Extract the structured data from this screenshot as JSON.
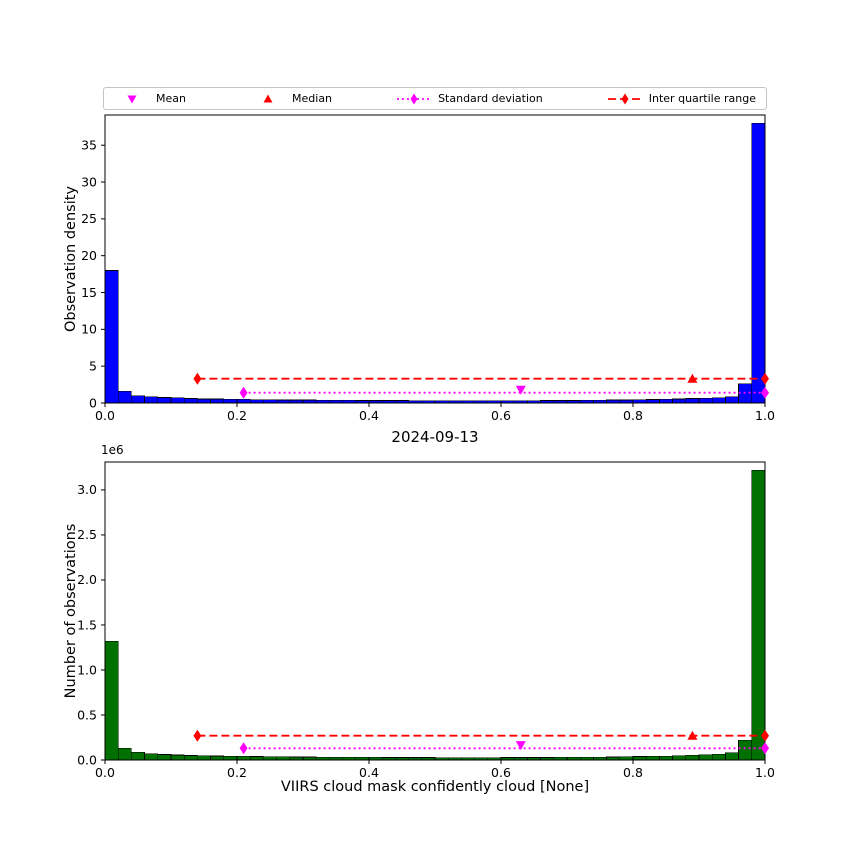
{
  "figure": {
    "background": "#ffffff"
  },
  "title": "2024-09-13",
  "xlabel": "VIIRS cloud mask confidently cloud [None]",
  "legend": {
    "items": [
      {
        "label": "Mean",
        "marker": "triangle-down",
        "color": "#ff00ff",
        "line": "none"
      },
      {
        "label": "Median",
        "marker": "triangle-up",
        "color": "#ff0000",
        "line": "none"
      },
      {
        "label": "Standard deviation",
        "marker": "diamond",
        "color": "#ff00ff",
        "line": "dotted"
      },
      {
        "label": "Inter quartile range",
        "marker": "diamond",
        "color": "#ff0000",
        "line": "dashed"
      }
    ]
  },
  "style": {
    "mean_color": "#ff00ff",
    "median_color": "#ff0000",
    "std_color": "#ff00ff",
    "iqr_color": "#ff0000",
    "axis_color": "#000000"
  },
  "chart_data": [
    {
      "type": "bar",
      "name": "observation-density-histogram",
      "ylabel": "Observation density",
      "bar_color": "#0000ff",
      "bar_edge_color": "#000000",
      "xlim": [
        0,
        1
      ],
      "ylim": [
        0,
        39.1
      ],
      "grid": false,
      "bin_start": 0,
      "bin_width": 0.02,
      "values": [
        18.0,
        1.6,
        1.0,
        0.85,
        0.75,
        0.7,
        0.6,
        0.55,
        0.55,
        0.5,
        0.5,
        0.45,
        0.45,
        0.42,
        0.4,
        0.4,
        0.38,
        0.38,
        0.36,
        0.35,
        0.35,
        0.34,
        0.33,
        0.32,
        0.32,
        0.31,
        0.3,
        0.3,
        0.3,
        0.3,
        0.3,
        0.31,
        0.32,
        0.33,
        0.34,
        0.35,
        0.36,
        0.38,
        0.4,
        0.42,
        0.45,
        0.48,
        0.5,
        0.55,
        0.6,
        0.65,
        0.72,
        0.85,
        2.6,
        38.0
      ],
      "xticks": {
        "values": [
          0,
          0.2,
          0.4,
          0.6,
          0.8,
          1
        ],
        "labels": [
          "0.0",
          "0.2",
          "0.4",
          "0.6",
          "0.8",
          "1.0"
        ]
      },
      "yticks": {
        "values": [
          0,
          5,
          10,
          15,
          20,
          25,
          30,
          35
        ],
        "labels": [
          "0",
          "5",
          "10",
          "15",
          "20",
          "25",
          "30",
          "35"
        ]
      },
      "stats": {
        "mean": {
          "x": 0.63,
          "y": 1.8
        },
        "median": {
          "x": 0.89,
          "y": 3.3
        },
        "std": {
          "x1": 0.21,
          "x2": 1.0,
          "y": 1.4
        },
        "iqr": {
          "x1": 0.14,
          "x2": 1.0,
          "y": 3.3
        }
      }
    },
    {
      "type": "bar",
      "name": "observation-count-histogram",
      "ylabel": "Number of observations",
      "y_offset_label": "1e6",
      "y_unit_multiplier": 1000000,
      "bar_color": "#007000",
      "bar_edge_color": "#000000",
      "xlim": [
        0,
        1
      ],
      "ylim": [
        0,
        3.31
      ],
      "grid": false,
      "bin_start": 0,
      "bin_width": 0.02,
      "values": [
        1.32,
        0.13,
        0.085,
        0.07,
        0.062,
        0.056,
        0.05,
        0.046,
        0.044,
        0.042,
        0.04,
        0.038,
        0.036,
        0.035,
        0.034,
        0.033,
        0.032,
        0.031,
        0.03,
        0.03,
        0.029,
        0.028,
        0.028,
        0.027,
        0.027,
        0.026,
        0.026,
        0.026,
        0.026,
        0.026,
        0.027,
        0.027,
        0.028,
        0.028,
        0.029,
        0.03,
        0.031,
        0.032,
        0.034,
        0.036,
        0.038,
        0.04,
        0.043,
        0.047,
        0.052,
        0.058,
        0.065,
        0.08,
        0.22,
        3.22
      ],
      "xticks": {
        "values": [
          0,
          0.2,
          0.4,
          0.6,
          0.8,
          1
        ],
        "labels": [
          "0.0",
          "0.2",
          "0.4",
          "0.6",
          "0.8",
          "1.0"
        ]
      },
      "yticks": {
        "values": [
          0,
          0.5,
          1,
          1.5,
          2,
          2.5,
          3
        ],
        "labels": [
          "0.0",
          "0.5",
          "1.0",
          "1.5",
          "2.0",
          "2.5",
          "3.0"
        ]
      },
      "stats": {
        "mean": {
          "x": 0.63,
          "y": 0.165
        },
        "median": {
          "x": 0.89,
          "y": 0.27
        },
        "std": {
          "x1": 0.21,
          "x2": 1.0,
          "y": 0.13
        },
        "iqr": {
          "x1": 0.14,
          "x2": 1.0,
          "y": 0.27
        }
      }
    }
  ]
}
